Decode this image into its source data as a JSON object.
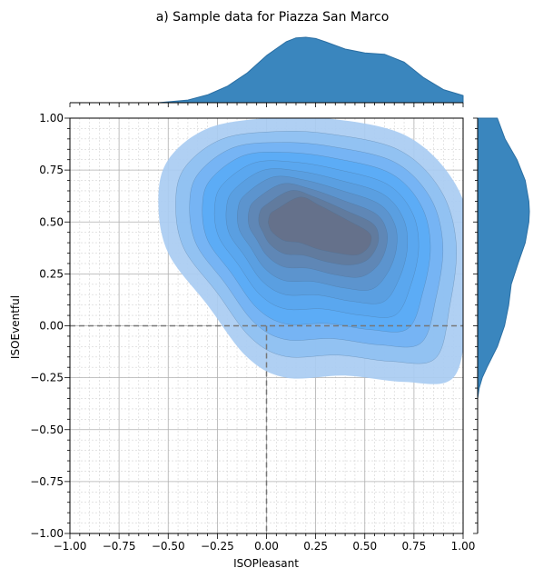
{
  "chart_data": {
    "type": "kde-jointplot",
    "title": "a) Sample data for Piazza San Marco",
    "xlabel": "ISOPleasant",
    "ylabel": "ISOEventful",
    "xlim": [
      -1.0,
      1.0
    ],
    "ylim": [
      -1.0,
      1.0
    ],
    "xticks": [
      "−1.00",
      "−0.75",
      "−0.50",
      "−0.25",
      "0.00",
      "0.25",
      "0.50",
      "0.75",
      "1.00"
    ],
    "yticks": [
      "−1.00",
      "−0.75",
      "−0.50",
      "−0.25",
      "0.00",
      "0.25",
      "0.50",
      "0.75",
      "1.00"
    ],
    "tick_values": [
      -1.0,
      -0.75,
      -0.5,
      -0.25,
      0.0,
      0.25,
      0.5,
      0.75,
      1.0
    ],
    "grid": "major and minor",
    "reference_lines": {
      "x": 0.0,
      "y": 0.0,
      "style": "dashed"
    },
    "density_mode": {
      "x": 0.33,
      "y": 0.44
    },
    "marginal_x": {
      "x": [
        -0.55,
        -0.4,
        -0.3,
        -0.2,
        -0.1,
        0.0,
        0.1,
        0.15,
        0.2,
        0.25,
        0.3,
        0.4,
        0.5,
        0.6,
        0.7,
        0.8,
        0.9,
        1.0
      ],
      "density": [
        0.0,
        0.04,
        0.12,
        0.25,
        0.45,
        0.72,
        0.93,
        0.99,
        1.0,
        0.98,
        0.93,
        0.82,
        0.76,
        0.74,
        0.62,
        0.38,
        0.2,
        0.11
      ]
    },
    "marginal_y": {
      "y": [
        -0.35,
        -0.3,
        -0.25,
        -0.2,
        -0.1,
        0.0,
        0.1,
        0.2,
        0.3,
        0.4,
        0.5,
        0.55,
        0.6,
        0.7,
        0.8,
        0.9,
        1.0
      ],
      "density": [
        0.0,
        0.03,
        0.09,
        0.18,
        0.38,
        0.52,
        0.6,
        0.65,
        0.78,
        0.92,
        0.99,
        1.0,
        0.99,
        0.92,
        0.76,
        0.53,
        0.38
      ]
    },
    "colors": {
      "marginal_fill": "#3a86be",
      "marginal_line": "#2b6fa3",
      "levels": [
        "#a9ccf2",
        "#8fc0f2",
        "#74b3f4",
        "#5aabf5",
        "#5aa6ee",
        "#5a9ee0",
        "#5c93cc",
        "#5f86b4",
        "#627a9c",
        "#66708a"
      ]
    }
  }
}
